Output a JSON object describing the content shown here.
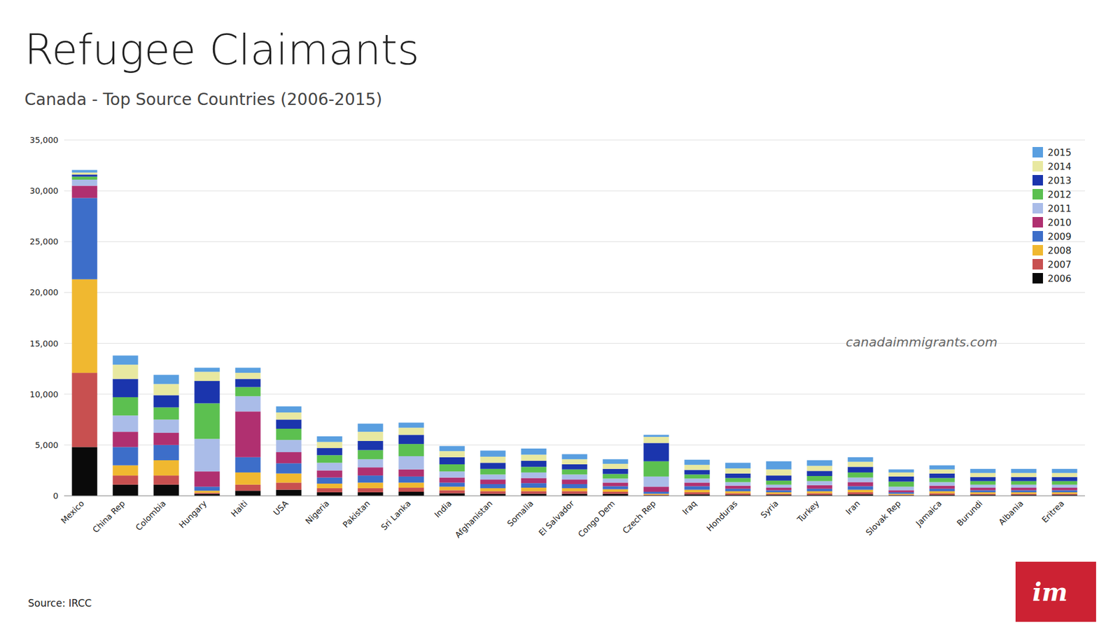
{
  "chart_data": {
    "type": "bar",
    "stacked": true,
    "title": "Refugee Claimants",
    "subtitle": "Canada - Top Source Countries (2006-2015)",
    "annotations": [
      "canadaimmigrants.com",
      "Source: IRCC",
      "im"
    ],
    "categories": [
      "Mexico",
      "China Rep",
      "Colombia",
      "Hungary",
      "Haiti",
      "USA",
      "Nigeria",
      "Pakistan",
      "Sri Lanka",
      "India",
      "Afghanistan",
      "Somalia",
      "El Salvador",
      "Congo Dem",
      "Czech Rep",
      "Iraq",
      "Honduras",
      "Syria",
      "Turkey",
      "Iran",
      "Slovak Rep",
      "Jamaica",
      "Burundi",
      "Albania",
      "Eritrea"
    ],
    "series": [
      {
        "name": "2006",
        "color": "#0a0a0a",
        "values": [
          4800,
          1100,
          1100,
          200,
          500,
          600,
          350,
          350,
          400,
          250,
          200,
          200,
          200,
          200,
          50,
          150,
          100,
          100,
          100,
          150,
          50,
          100,
          100,
          100,
          100
        ]
      },
      {
        "name": "2007",
        "color": "#C85050",
        "values": [
          7300,
          900,
          900,
          100,
          600,
          700,
          400,
          400,
          400,
          300,
          250,
          250,
          250,
          200,
          50,
          200,
          150,
          100,
          150,
          200,
          50,
          150,
          100,
          100,
          100
        ]
      },
      {
        "name": "2008",
        "color": "#F0B830",
        "values": [
          9200,
          1000,
          1500,
          200,
          1200,
          900,
          450,
          550,
          500,
          350,
          300,
          350,
          300,
          250,
          100,
          250,
          200,
          150,
          200,
          250,
          100,
          200,
          150,
          150,
          150
        ]
      },
      {
        "name": "2009",
        "color": "#3D6EC9",
        "values": [
          8000,
          1800,
          1500,
          400,
          1500,
          1000,
          600,
          700,
          600,
          400,
          400,
          450,
          400,
          300,
          200,
          350,
          250,
          200,
          250,
          350,
          150,
          250,
          200,
          200,
          200
        ]
      },
      {
        "name": "2010",
        "color": "#B03070",
        "values": [
          1200,
          1500,
          1200,
          1500,
          4500,
          1100,
          700,
          800,
          700,
          500,
          450,
          500,
          450,
          350,
          500,
          350,
          300,
          250,
          350,
          400,
          200,
          300,
          250,
          250,
          250
        ]
      },
      {
        "name": "2011",
        "color": "#AABCE8",
        "values": [
          600,
          1600,
          1300,
          3200,
          1500,
          1200,
          750,
          800,
          1300,
          600,
          500,
          550,
          500,
          400,
          1000,
          400,
          350,
          300,
          400,
          450,
          350,
          350,
          300,
          300,
          300
        ]
      },
      {
        "name": "2012",
        "color": "#5CC050",
        "values": [
          300,
          1800,
          1200,
          3500,
          900,
          1100,
          750,
          900,
          1200,
          700,
          550,
          550,
          500,
          450,
          1500,
          400,
          400,
          400,
          500,
          500,
          500,
          400,
          350,
          350,
          350
        ]
      },
      {
        "name": "2013",
        "color": "#1B35AD",
        "values": [
          200,
          1800,
          1200,
          2200,
          800,
          900,
          700,
          900,
          900,
          700,
          600,
          600,
          500,
          500,
          1800,
          450,
          450,
          500,
          500,
          550,
          500,
          450,
          400,
          400,
          400
        ]
      },
      {
        "name": "2014",
        "color": "#E8E8A0",
        "values": [
          200,
          1400,
          1100,
          900,
          600,
          700,
          600,
          900,
          700,
          600,
          600,
          600,
          500,
          500,
          600,
          500,
          500,
          600,
          500,
          500,
          400,
          400,
          400,
          400,
          400
        ]
      },
      {
        "name": "2015",
        "color": "#5A9FE0",
        "values": [
          250,
          900,
          900,
          400,
          500,
          600,
          550,
          800,
          500,
          500,
          600,
          600,
          500,
          450,
          200,
          500,
          550,
          800,
          550,
          450,
          300,
          400,
          400,
          400,
          400
        ]
      }
    ],
    "ylim": [
      0,
      35000
    ],
    "yticks": [
      0,
      {
        "value": 5000,
        "label": "5,000"
      },
      {
        "value": 10000,
        "label": "10,000"
      },
      {
        "value": 15000,
        "label": "15,000"
      },
      {
        "value": 20000,
        "label": "20,000"
      },
      {
        "value": 25000,
        "label": "25,000"
      },
      {
        "value": 30000,
        "label": "30,000"
      },
      {
        "value": 35000,
        "label": "35,000"
      }
    ],
    "grid": true,
    "legend": "upper right"
  }
}
